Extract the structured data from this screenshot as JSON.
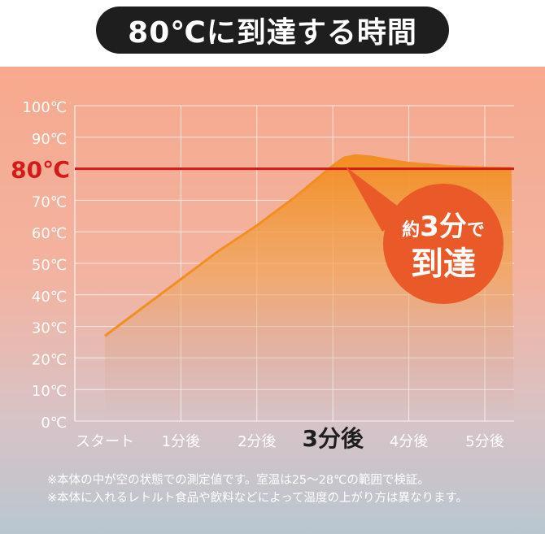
{
  "title": "80℃に到達する時間",
  "chart_data": {
    "type": "area",
    "x_categories": [
      "スタート",
      "1分後",
      "2分後",
      "3分後",
      "4分後",
      "5分後"
    ],
    "highlight_category": "3分後",
    "y_ticks": [
      {
        "value": 0,
        "label": "0℃"
      },
      {
        "value": 10,
        "label": "10℃"
      },
      {
        "value": 20,
        "label": "20℃"
      },
      {
        "value": 30,
        "label": "30℃"
      },
      {
        "value": 40,
        "label": "40℃"
      },
      {
        "value": 50,
        "label": "50℃"
      },
      {
        "value": 60,
        "label": "60℃"
      },
      {
        "value": 70,
        "label": "70℃"
      },
      {
        "value": 90,
        "label": "90℃"
      },
      {
        "value": 100,
        "label": "100℃"
      }
    ],
    "ylim": [
      0,
      100
    ],
    "xlim": [
      -0.25,
      5.35
    ],
    "grid": true,
    "series": [
      {
        "x": [
          0,
          0.5,
          1,
          1.5,
          2,
          2.5,
          2.8,
          3,
          3.15,
          3.3,
          3.5,
          3.8,
          4,
          4.5,
          5,
          5.35
        ],
        "values": [
          27,
          36,
          45,
          54,
          62,
          71,
          77,
          81,
          83.5,
          84.2,
          83.8,
          82.5,
          81.8,
          80.8,
          80.3,
          80.2
        ],
        "color": "#f28e22"
      }
    ],
    "target_line": {
      "value": 80,
      "label": "80℃",
      "color": "#d41b1b"
    },
    "callout": {
      "line1_a": "約",
      "line1_b": "3分",
      "line1_c": "で",
      "line2": "到達",
      "color": "#ea5a28"
    }
  },
  "notes": [
    "※本体の中が空の状態での測定値です。室温は25〜28℃の範囲で検証。",
    "※本体に入れるレトルト食品や飲料などによって温度の上がり方は異なります。"
  ]
}
